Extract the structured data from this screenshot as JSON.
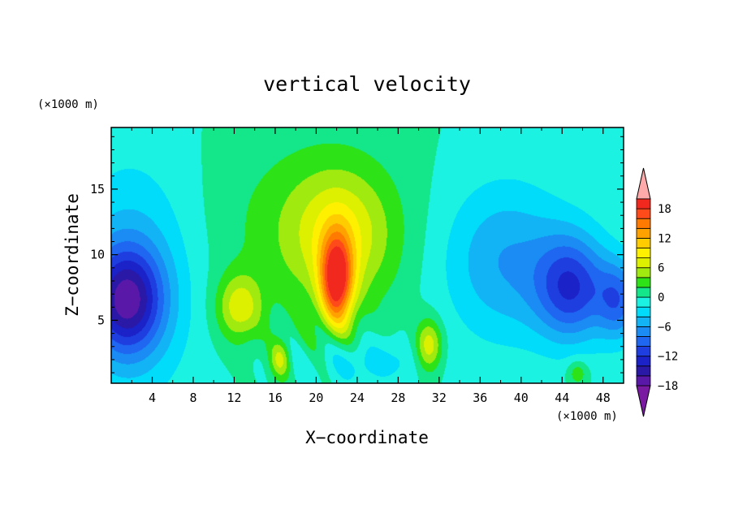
{
  "chart_data": {
    "type": "heatmap",
    "title": "vertical velocity",
    "xlabel": "X−coordinate",
    "ylabel": "Z−coordinate",
    "x_unit": "(×1000 m)",
    "y_unit": "(×1000 m)",
    "xlim": [
      0,
      50
    ],
    "ylim": [
      0.2,
      19.7
    ],
    "x_ticks": [
      4,
      8,
      12,
      16,
      20,
      24,
      28,
      32,
      36,
      40,
      44,
      48
    ],
    "y_ticks": [
      5,
      10,
      15
    ],
    "colorbar": {
      "levels": [
        -20,
        -18,
        -16,
        -14,
        -12,
        -10,
        -8,
        -6,
        -4,
        -2,
        0,
        2,
        4,
        6,
        8,
        10,
        12,
        14,
        16,
        18,
        20
      ],
      "tick_labels": [
        "18",
        "12",
        "6",
        "0",
        "−6",
        "−12",
        "−18"
      ],
      "tick_values": [
        18,
        12,
        6,
        0,
        -6,
        -12,
        -18
      ],
      "colors": [
        "#7a1aa3",
        "#5a18a8",
        "#2a18a6",
        "#1a22c8",
        "#1e3ee0",
        "#1f66f0",
        "#1a8cf4",
        "#12b4f6",
        "#00dcfa",
        "#1cf2e2",
        "#14e68a",
        "#2ee218",
        "#a0ea10",
        "#dcf000",
        "#fff000",
        "#ffcc00",
        "#ffa200",
        "#ff7a00",
        "#ff4a1a",
        "#f0281e",
        "#ffaaaa"
      ]
    },
    "blobs": [
      {
        "x": 22.0,
        "z": 8.0,
        "sx": 1.6,
        "sz": 3.5,
        "a": 17
      },
      {
        "x": 22.5,
        "z": 11.5,
        "sx": 5.0,
        "sz": 5.0,
        "a": 6
      },
      {
        "x": 19.0,
        "z": 12.0,
        "sx": 9.0,
        "sz": 7.0,
        "a": 3
      },
      {
        "x": 12.5,
        "z": 6.0,
        "sx": 2.2,
        "sz": 2.5,
        "a": 7
      },
      {
        "x": 31.0,
        "z": 3.0,
        "sx": 1.3,
        "sz": 2.0,
        "a": 8
      },
      {
        "x": 16.5,
        "z": 2.0,
        "sx": 1.0,
        "sz": 1.5,
        "a": 6
      },
      {
        "x": 45.5,
        "z": 1.0,
        "sx": 1.0,
        "sz": 1.0,
        "a": 4
      },
      {
        "x": 1.5,
        "z": 6.5,
        "sx": 3.5,
        "sz": 4.0,
        "a": -13
      },
      {
        "x": 45.0,
        "z": 7.5,
        "sx": 3.5,
        "sz": 4.0,
        "a": -11
      },
      {
        "x": 49.5,
        "z": 6.5,
        "sx": 2.0,
        "sz": 3.0,
        "a": -8
      },
      {
        "x": 38.5,
        "z": 9.5,
        "sx": 6.0,
        "sz": 6.0,
        "a": -6
      },
      {
        "x": 2.0,
        "z": 8.0,
        "sx": 6.0,
        "sz": 9.0,
        "a": -5
      },
      {
        "x": 25.0,
        "z": 1.8,
        "sx": 6.0,
        "sz": 1.8,
        "a": -3
      }
    ]
  }
}
